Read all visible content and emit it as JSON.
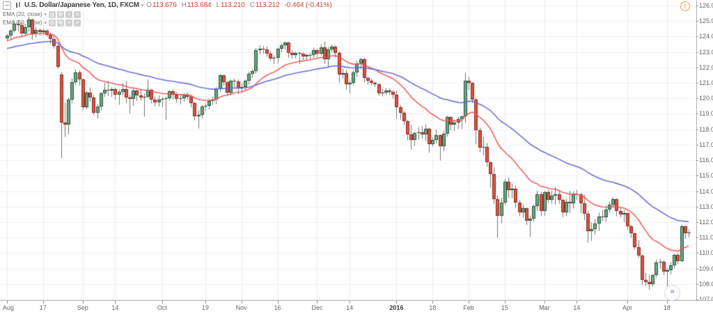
{
  "header": {
    "symbol": "U.S. Dollar/Japanese Yen, 1D, FXCM",
    "ohlc": {
      "o_label": "O",
      "o": "113.676",
      "h_label": "H",
      "h": "113.684",
      "l_label": "L",
      "l": "113.210",
      "c_label": "C",
      "c": "113.212",
      "change": "-0.464 (-0.41%)"
    },
    "value_color": "#c9473a"
  },
  "indicators": [
    {
      "label": "EMA (20, close)",
      "period": 20,
      "seed": 123.7,
      "color": "#ef5350"
    },
    {
      "label": "EMA (50, close)",
      "period": 50,
      "seed": 123.2,
      "color": "#5f63d9"
    }
  ],
  "indicator_icons": {
    "hide": "◎",
    "settings": "⚙",
    "add": "+",
    "remove": "×"
  },
  "ui": {
    "alert_glyph": "!",
    "jump_glyph": "»"
  },
  "chart_data": {
    "type": "candlestick",
    "title": "U.S. Dollar/Japanese Yen, 1D, FXCM",
    "timeframe": "1D",
    "y_axis": {
      "min": 107,
      "max": 126,
      "step": 1,
      "decimals": 3
    },
    "x_ticks": [
      {
        "i": 0,
        "label": "Aug"
      },
      {
        "i": 10,
        "label": "17"
      },
      {
        "i": 21,
        "label": "Sep"
      },
      {
        "i": 30,
        "label": "14"
      },
      {
        "i": 43,
        "label": "Oct"
      },
      {
        "i": 55,
        "label": "19"
      },
      {
        "i": 65,
        "label": "Nov"
      },
      {
        "i": 75,
        "label": "16"
      },
      {
        "i": 86,
        "label": "Dec"
      },
      {
        "i": 95,
        "label": "14"
      },
      {
        "i": 108,
        "label": "2016",
        "bold": true
      },
      {
        "i": 118,
        "label": "18"
      },
      {
        "i": 128,
        "label": "Feb"
      },
      {
        "i": 138,
        "label": "15"
      },
      {
        "i": 149,
        "label": "Mar"
      },
      {
        "i": 158,
        "label": "14"
      },
      {
        "i": 172,
        "label": "Apr"
      },
      {
        "i": 183,
        "label": "18"
      }
    ],
    "colors": {
      "up": "#6ba583",
      "up_border": "#225437",
      "down": "#d75442",
      "down_border": "#8c2a1f",
      "wick": "#737375",
      "grid": "#f0f0f0",
      "vgrid": "#ececec"
    },
    "candles": [
      [
        123.9,
        124.15,
        123.68,
        124.05
      ],
      [
        124.05,
        124.48,
        123.85,
        124.38
      ],
      [
        124.38,
        125.02,
        124.25,
        124.82
      ],
      [
        124.82,
        125.08,
        124.32,
        124.72
      ],
      [
        124.72,
        124.9,
        123.95,
        124.18
      ],
      [
        124.18,
        124.78,
        124.05,
        124.62
      ],
      [
        124.62,
        125.28,
        124.32,
        125.08
      ],
      [
        125.08,
        125.15,
        123.78,
        124.2
      ],
      [
        124.2,
        124.62,
        123.92,
        124.42
      ],
      [
        124.42,
        124.52,
        124.05,
        124.28
      ],
      [
        124.28,
        124.5,
        124.08,
        124.4
      ],
      [
        124.4,
        124.46,
        123.98,
        124.12
      ],
      [
        124.12,
        124.25,
        123.52,
        123.82
      ],
      [
        123.82,
        124.05,
        123.22,
        123.38
      ],
      [
        123.38,
        123.55,
        121.92,
        122.02
      ],
      [
        121.55,
        121.7,
        116.15,
        118.42
      ],
      [
        118.42,
        119.72,
        117.52,
        118.3
      ],
      [
        118.3,
        120.05,
        117.68,
        119.92
      ],
      [
        119.92,
        121.28,
        119.68,
        121.05
      ],
      [
        121.05,
        121.88,
        120.88,
        121.7
      ],
      [
        121.7,
        121.82,
        120.82,
        121.22
      ],
      [
        121.22,
        121.28,
        119.22,
        119.42
      ],
      [
        119.42,
        120.48,
        119.3,
        120.35
      ],
      [
        120.35,
        120.7,
        119.78,
        120.05
      ],
      [
        120.05,
        120.22,
        118.92,
        119.05
      ],
      [
        119.05,
        119.62,
        118.68,
        119.48
      ],
      [
        119.48,
        120.42,
        119.22,
        120.32
      ],
      [
        120.32,
        121.02,
        120.1,
        120.55
      ],
      [
        120.55,
        121.12,
        120.15,
        120.5
      ],
      [
        120.5,
        120.72,
        120.08,
        120.58
      ],
      [
        120.58,
        120.7,
        119.92,
        120.25
      ],
      [
        120.25,
        120.58,
        119.58,
        120.42
      ],
      [
        120.42,
        120.98,
        120.18,
        120.6
      ],
      [
        120.6,
        121.12,
        119.68,
        120.05
      ],
      [
        120.05,
        120.22,
        119.02,
        119.95
      ],
      [
        119.95,
        120.62,
        119.52,
        120.52
      ],
      [
        120.52,
        120.58,
        119.82,
        120.18
      ],
      [
        120.18,
        120.62,
        119.88,
        120.05
      ],
      [
        120.05,
        120.32,
        118.82,
        120.12
      ],
      [
        120.12,
        121.22,
        120.02,
        120.55
      ],
      [
        120.55,
        120.62,
        119.68,
        119.9
      ],
      [
        119.9,
        120.12,
        119.48,
        119.75
      ],
      [
        119.75,
        120.18,
        119.48,
        119.92
      ],
      [
        119.92,
        120.08,
        119.42,
        119.95
      ],
      [
        119.95,
        120.12,
        118.62,
        120.02
      ],
      [
        120.02,
        120.52,
        119.88,
        120.45
      ],
      [
        120.45,
        120.58,
        119.92,
        120.25
      ],
      [
        120.25,
        120.38,
        119.72,
        119.95
      ],
      [
        119.95,
        120.22,
        119.62,
        120.02
      ],
      [
        120.02,
        120.32,
        119.78,
        120.25
      ],
      [
        120.25,
        120.38,
        119.92,
        120.08
      ],
      [
        120.08,
        120.22,
        119.42,
        119.7
      ],
      [
        119.7,
        119.78,
        118.58,
        118.82
      ],
      [
        118.82,
        119.22,
        118.05,
        118.95
      ],
      [
        118.95,
        119.58,
        118.72,
        119.45
      ],
      [
        119.45,
        119.68,
        119.18,
        119.52
      ],
      [
        119.52,
        119.98,
        119.28,
        119.82
      ],
      [
        119.82,
        120.12,
        119.58,
        119.92
      ],
      [
        119.92,
        120.72,
        119.62,
        120.62
      ],
      [
        120.62,
        121.58,
        120.42,
        121.48
      ],
      [
        121.48,
        121.52,
        120.82,
        121.05
      ],
      [
        121.05,
        121.12,
        120.22,
        120.35
      ],
      [
        120.35,
        121.22,
        120.18,
        121.12
      ],
      [
        121.12,
        121.28,
        120.72,
        121.1
      ],
      [
        121.1,
        121.22,
        120.28,
        120.62
      ],
      [
        120.62,
        120.98,
        120.35,
        120.72
      ],
      [
        120.72,
        121.22,
        120.55,
        121.12
      ],
      [
        121.12,
        121.72,
        120.88,
        121.6
      ],
      [
        121.6,
        121.88,
        121.32,
        121.75
      ],
      [
        121.75,
        123.26,
        121.58,
        123.12
      ],
      [
        123.12,
        123.42,
        122.85,
        123.2
      ],
      [
        123.2,
        123.38,
        122.88,
        123.18
      ],
      [
        123.18,
        123.35,
        122.68,
        122.9
      ],
      [
        122.9,
        123.05,
        122.42,
        122.6
      ],
      [
        122.6,
        122.78,
        122.22,
        122.62
      ],
      [
        122.62,
        123.28,
        122.25,
        123.2
      ],
      [
        123.2,
        123.52,
        122.98,
        123.42
      ],
      [
        123.42,
        123.67,
        123.15,
        123.6
      ],
      [
        123.6,
        123.65,
        122.62,
        122.92
      ],
      [
        122.92,
        123.15,
        122.58,
        122.8
      ],
      [
        122.8,
        123.02,
        122.58,
        122.92
      ],
      [
        122.92,
        123.02,
        122.22,
        122.88
      ],
      [
        122.88,
        122.95,
        122.48,
        122.72
      ],
      [
        122.72,
        122.92,
        122.48,
        122.82
      ],
      [
        122.82,
        122.95,
        122.52,
        122.8
      ],
      [
        122.8,
        123.28,
        122.62,
        123.12
      ],
      [
        123.12,
        123.22,
        122.68,
        122.9
      ],
      [
        122.9,
        123.48,
        122.78,
        123.28
      ],
      [
        123.28,
        123.68,
        122.22,
        122.55
      ],
      [
        122.55,
        123.32,
        122.02,
        123.15
      ],
      [
        123.15,
        123.48,
        122.98,
        123.35
      ],
      [
        123.35,
        123.42,
        122.62,
        122.95
      ],
      [
        122.95,
        123.05,
        121.02,
        121.55
      ],
      [
        121.55,
        121.92,
        121.28,
        121.62
      ],
      [
        121.62,
        121.82,
        120.58,
        120.92
      ],
      [
        120.92,
        121.15,
        120.32,
        121.02
      ],
      [
        121.02,
        121.82,
        120.85,
        121.68
      ],
      [
        121.68,
        122.42,
        121.38,
        122.28
      ],
      [
        122.28,
        122.62,
        121.88,
        122.52
      ],
      [
        122.52,
        122.62,
        121.02,
        121.32
      ],
      [
        121.32,
        121.42,
        120.88,
        121.12
      ],
      [
        121.12,
        121.28,
        120.82,
        121.02
      ],
      [
        121.02,
        121.08,
        120.72,
        120.92
      ],
      [
        120.92,
        120.98,
        120.18,
        120.32
      ],
      [
        120.32,
        120.62,
        120.12,
        120.38
      ],
      [
        120.38,
        120.68,
        120.22,
        120.52
      ],
      [
        120.52,
        120.62,
        120.22,
        120.42
      ],
      [
        120.42,
        120.52,
        119.98,
        120.22
      ],
      [
        120.22,
        120.48,
        118.68,
        119.42
      ],
      [
        119.42,
        119.58,
        118.62,
        119.08
      ],
      [
        119.08,
        119.18,
        118.28,
        118.52
      ],
      [
        118.52,
        118.62,
        117.28,
        117.65
      ],
      [
        117.65,
        118.28,
        116.68,
        117.32
      ],
      [
        117.32,
        117.82,
        116.92,
        117.75
      ],
      [
        117.75,
        118.12,
        117.32,
        117.82
      ],
      [
        117.82,
        118.22,
        117.38,
        117.68
      ],
      [
        117.68,
        118.32,
        117.22,
        118.05
      ],
      [
        118.05,
        118.12,
        116.48,
        117.02
      ],
      [
        117.02,
        117.48,
        116.88,
        117.32
      ],
      [
        117.32,
        117.98,
        117.08,
        117.62
      ],
      [
        117.62,
        117.68,
        115.98,
        116.92
      ],
      [
        116.92,
        117.92,
        116.58,
        117.72
      ],
      [
        117.72,
        118.88,
        117.52,
        118.78
      ],
      [
        118.78,
        118.82,
        117.92,
        118.32
      ],
      [
        118.32,
        118.62,
        117.88,
        118.42
      ],
      [
        118.42,
        118.82,
        118.02,
        118.65
      ],
      [
        118.65,
        118.88,
        118.02,
        118.82
      ],
      [
        118.82,
        121.68,
        118.42,
        121.12
      ],
      [
        121.12,
        121.38,
        120.52,
        120.98
      ],
      [
        120.98,
        121.05,
        119.68,
        119.92
      ],
      [
        119.92,
        120.05,
        117.05,
        117.92
      ],
      [
        117.92,
        118.12,
        116.52,
        116.82
      ],
      [
        116.82,
        117.52,
        116.32,
        116.88
      ],
      [
        116.88,
        117.12,
        115.58,
        115.88
      ],
      [
        115.88,
        115.92,
        114.22,
        115.12
      ],
      [
        115.12,
        115.52,
        113.18,
        113.48
      ],
      [
        113.48,
        113.72,
        110.98,
        112.42
      ],
      [
        112.42,
        113.58,
        111.92,
        113.28
      ],
      [
        113.28,
        114.78,
        113.12,
        114.62
      ],
      [
        114.62,
        114.88,
        113.58,
        114.08
      ],
      [
        114.08,
        114.48,
        113.52,
        114.18
      ],
      [
        114.18,
        114.38,
        112.92,
        113.28
      ],
      [
        113.28,
        113.42,
        112.38,
        112.62
      ],
      [
        112.62,
        113.12,
        112.28,
        112.88
      ],
      [
        112.88,
        112.92,
        111.82,
        112.08
      ],
      [
        112.08,
        112.42,
        111.04,
        112.22
      ],
      [
        112.22,
        113.12,
        112.02,
        113.02
      ],
      [
        113.02,
        114.02,
        112.72,
        113.82
      ],
      [
        113.82,
        113.95,
        112.38,
        112.7
      ],
      [
        112.7,
        114.02,
        112.42,
        113.92
      ],
      [
        113.92,
        114.08,
        113.22,
        113.45
      ],
      [
        113.45,
        114.02,
        113.18,
        113.72
      ],
      [
        113.72,
        114.28,
        113.12,
        113.82
      ],
      [
        113.82,
        114.02,
        113.18,
        113.42
      ],
      [
        113.42,
        113.52,
        112.32,
        112.65
      ],
      [
        112.65,
        113.52,
        112.38,
        113.32
      ],
      [
        113.32,
        114.02,
        112.58,
        113.22
      ],
      [
        113.22,
        113.98,
        112.88,
        113.82
      ],
      [
        113.82,
        114.08,
        113.42,
        113.8
      ],
      [
        113.8,
        113.88,
        112.58,
        113.22
      ],
      [
        113.22,
        113.78,
        112.12,
        112.55
      ],
      [
        112.55,
        112.72,
        110.68,
        111.42
      ],
      [
        111.42,
        111.98,
        110.78,
        111.55
      ],
      [
        111.55,
        112.18,
        111.18,
        111.92
      ],
      [
        111.92,
        112.62,
        111.42,
        112.38
      ],
      [
        112.38,
        112.78,
        112.08,
        112.32
      ],
      [
        112.32,
        113.08,
        112.02,
        112.82
      ],
      [
        112.82,
        113.32,
        112.62,
        113.12
      ],
      [
        113.12,
        113.62,
        112.88,
        113.48
      ],
      [
        113.48,
        113.52,
        112.38,
        112.72
      ],
      [
        112.72,
        112.92,
        112.28,
        112.48
      ],
      [
        112.48,
        112.78,
        111.98,
        112.58
      ],
      [
        112.58,
        112.62,
        111.52,
        111.72
      ],
      [
        111.72,
        111.82,
        110.98,
        111.28
      ],
      [
        111.28,
        111.32,
        110.22,
        110.38
      ],
      [
        110.38,
        110.82,
        109.68,
        109.82
      ],
      [
        109.82,
        109.92,
        107.94,
        108.28
      ],
      [
        108.28,
        108.72,
        107.88,
        108.12
      ],
      [
        108.12,
        108.58,
        107.63,
        107.98
      ],
      [
        107.98,
        108.62,
        107.82,
        108.58
      ],
      [
        108.58,
        109.58,
        108.42,
        109.38
      ],
      [
        109.38,
        109.62,
        108.98,
        109.42
      ],
      [
        109.42,
        109.52,
        108.58,
        108.78
      ],
      [
        108.78,
        109.02,
        107.78,
        108.88
      ],
      [
        108.88,
        109.42,
        108.62,
        109.22
      ],
      [
        109.22,
        109.92,
        109.02,
        109.88
      ],
      [
        109.88,
        109.98,
        109.28,
        109.48
      ],
      [
        109.48,
        111.82,
        109.42,
        111.72
      ],
      [
        111.72,
        111.78,
        110.92,
        111.28
      ],
      [
        111.28,
        111.52,
        111.02,
        111.32
      ]
    ]
  }
}
